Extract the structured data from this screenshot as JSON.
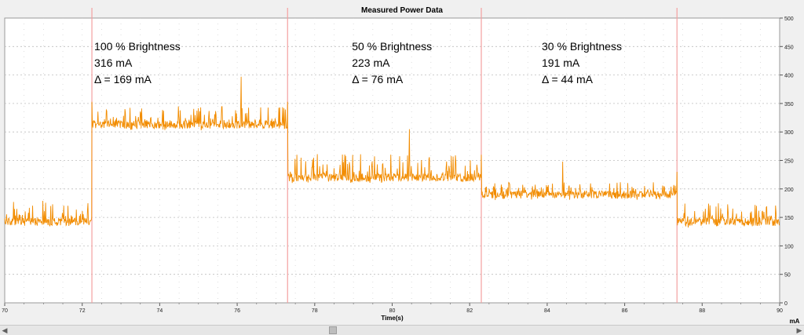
{
  "chart_data": {
    "type": "line",
    "title": "Measured Power Data",
    "xlabel": "Time(s)",
    "ylabel": "mA",
    "xlim": [
      70,
      90
    ],
    "ylim": [
      0,
      500
    ],
    "x_ticks": [
      70,
      72,
      74,
      76,
      78,
      80,
      82,
      84,
      86,
      88,
      90
    ],
    "y_ticks": [
      0,
      50,
      100,
      150,
      200,
      250,
      300,
      350,
      400,
      450,
      500
    ],
    "grid": true,
    "line_color": "#f28c00",
    "marker_line_color": "#f4a0a0",
    "markers": [
      72.25,
      77.3,
      82.3,
      87.35
    ],
    "segments": [
      {
        "x_start": 70.0,
        "x_end": 72.25,
        "base": 142,
        "spike_max": 180
      },
      {
        "x_start": 72.25,
        "x_end": 77.3,
        "base": 313,
        "spike_max": 345,
        "peak": {
          "x": 76.1,
          "y": 397
        }
      },
      {
        "x_start": 77.3,
        "x_end": 82.3,
        "base": 220,
        "spike_max": 262,
        "peak": {
          "x": 80.45,
          "y": 305
        }
      },
      {
        "x_start": 82.3,
        "x_end": 87.35,
        "base": 190,
        "spike_max": 212,
        "peak": {
          "x": 84.4,
          "y": 248
        }
      },
      {
        "x_start": 87.35,
        "x_end": 90.0,
        "base": 142,
        "spike_max": 175
      }
    ],
    "annotations": [
      {
        "x": 72.25,
        "lines": [
          "100 % Brightness",
          "316 mA",
          "Δ = 169 mA"
        ]
      },
      {
        "x": 78.9,
        "lines": [
          "50 % Brightness",
          "223 mA",
          "Δ = 76 mA"
        ]
      },
      {
        "x": 83.8,
        "lines": [
          "30 % Brightness",
          "191 mA",
          "Δ = 44 mA"
        ]
      }
    ]
  },
  "scrollbar": {
    "left_arrow": "◀",
    "right_arrow": "▶"
  }
}
